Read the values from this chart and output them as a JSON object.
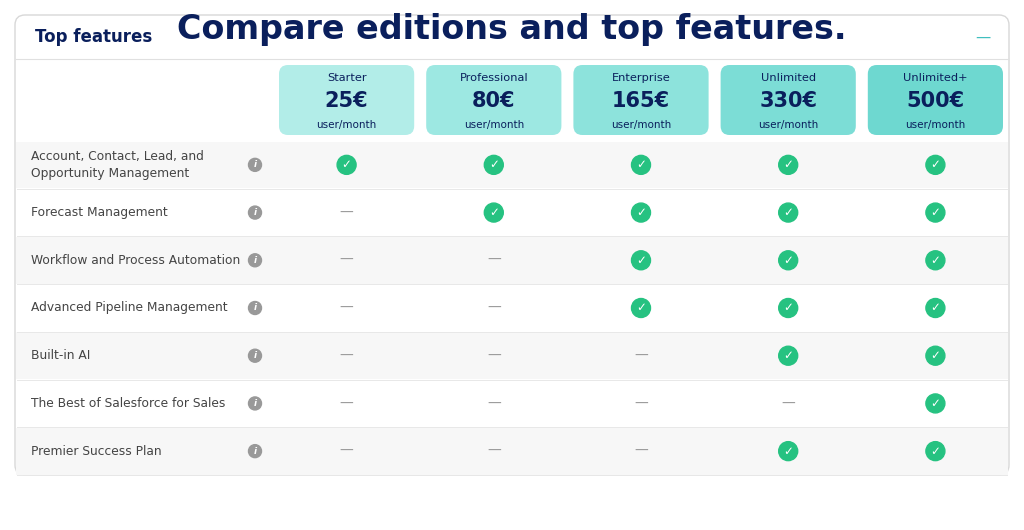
{
  "title": "Compare editions and top features.",
  "title_color": "#0a1f5c",
  "title_fontsize": 24,
  "section_label": "Top features",
  "section_label_color": "#0a1f5c",
  "section_label_fontsize": 12,
  "plans": [
    {
      "name": "Starter",
      "price": "25€",
      "period": "user/month"
    },
    {
      "name": "Professional",
      "price": "80€",
      "period": "user/month"
    },
    {
      "name": "Enterprise",
      "price": "165€",
      "period": "user/month"
    },
    {
      "name": "Unlimited",
      "price": "330€",
      "period": "user/month"
    },
    {
      "name": "Unlimited+",
      "price": "500€",
      "period": "user/month"
    }
  ],
  "plan_header_colors": [
    "#b2ede8",
    "#9de8e2",
    "#8de3dc",
    "#7cddd6",
    "#6ed8d0"
  ],
  "plan_header_text_color": "#0a1f5c",
  "features": [
    "Account, Contact, Lead, and\nOpportunity Management",
    "Forecast Management",
    "Workflow and Process Automation",
    "Advanced Pipeline Management",
    "Built-in AI",
    "The Best of Salesforce for Sales",
    "Premier Success Plan"
  ],
  "feature_color": "#444444",
  "feature_fontsize": 8.8,
  "checkmarks": [
    [
      true,
      true,
      true,
      true,
      true
    ],
    [
      false,
      true,
      true,
      true,
      true
    ],
    [
      false,
      false,
      true,
      true,
      true
    ],
    [
      false,
      false,
      true,
      true,
      true
    ],
    [
      false,
      false,
      false,
      true,
      true
    ],
    [
      false,
      false,
      false,
      false,
      true
    ],
    [
      false,
      false,
      false,
      true,
      true
    ]
  ],
  "check_color": "#26c281",
  "dash_color": "#999999",
  "outer_bg": "#ffffff",
  "card_bg": "#ffffff",
  "card_border": "#d8d8d8",
  "row_even_color": "#f7f7f7",
  "row_odd_color": "#ffffff",
  "row_line_color": "#e8e8e8",
  "sep_line_color": "#e0e0e0",
  "minus_color": "#40bfbf",
  "info_color": "#999999"
}
